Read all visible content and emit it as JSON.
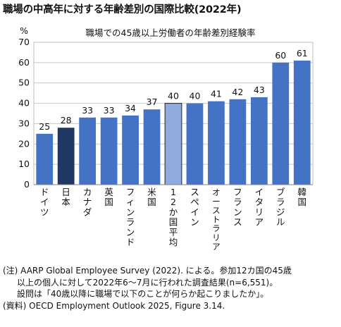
{
  "title": "職場の中高年に対する年齢差別の国際比較(2022年)",
  "chart_data": {
    "type": "bar",
    "title": "職場での45歳以上労働者の年齢差別経験率",
    "ylabel": "%",
    "ylim": [
      0,
      70
    ],
    "yticks": [
      0,
      10,
      20,
      30,
      40,
      50,
      60,
      70
    ],
    "grid": true,
    "categories": [
      "ドイツ",
      "日本",
      "カナダ",
      "英国",
      "フィンランド",
      "米国",
      "12か国平均",
      "スペイン",
      "オーストラリア",
      "フランス",
      "イタリア",
      "ブラジル",
      "韓国"
    ],
    "values": [
      25,
      28,
      33,
      33,
      34,
      37,
      40,
      40,
      41,
      42,
      43,
      60,
      61
    ],
    "colors": {
      "default": "#4472c4",
      "highlight_japan": "#203864",
      "average": "#8faadc"
    }
  },
  "notes": {
    "note_line1": "(注) AARP Global Employee Survey (2022). による。参加12カ国の45歳",
    "note_line2": "以上の個人に対して2022年6～7月に行われた調査結果(n=6,551)。",
    "note_line3": "設問は「40歳以降に職場で以下のことが何らか起こりましたか」。",
    "source": "(資料) OECD Employment Outlook 2025, Figure 3.14."
  }
}
